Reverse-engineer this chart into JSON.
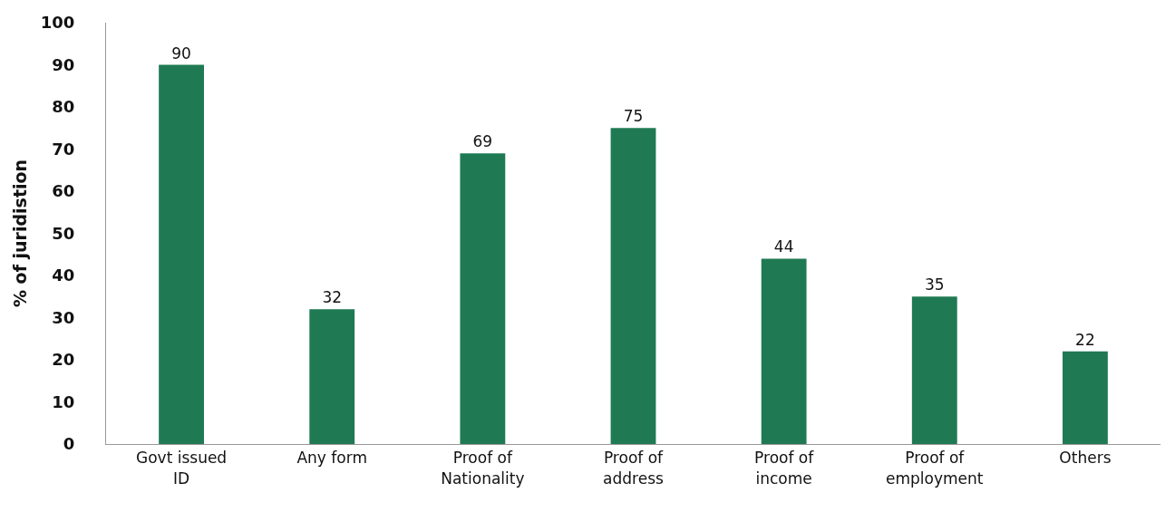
{
  "chart_data": {
    "type": "bar",
    "ylabel": "% of juridistion",
    "categories": [
      "Govt issued ID",
      "Any form",
      "Proof of Nationality",
      "Proof of address",
      "Proof of income",
      "Proof of employment",
      "Others"
    ],
    "values": [
      90,
      32,
      69,
      75,
      44,
      35,
      22
    ],
    "color": "#1f7a53",
    "ylim": [
      0,
      100
    ],
    "yticks": [
      0,
      10,
      20,
      30,
      40,
      50,
      60,
      70,
      80,
      90,
      100
    ],
    "grid": false,
    "data_labels": true
  }
}
